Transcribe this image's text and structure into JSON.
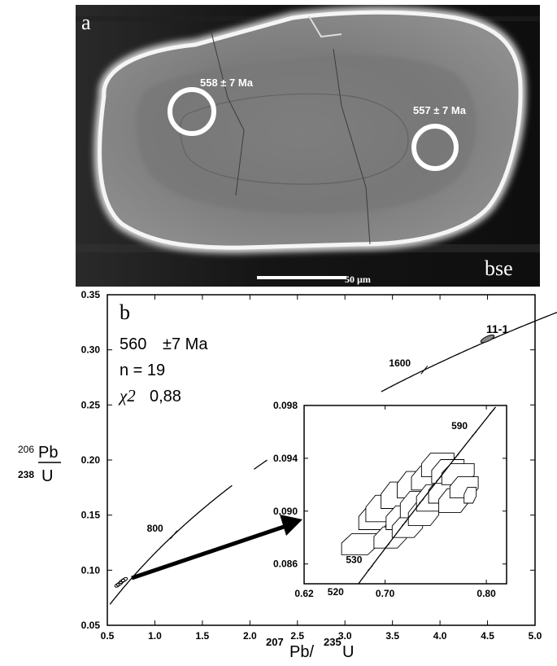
{
  "figure": {
    "panel_a": {
      "panel_label": "a",
      "mode_label": "bse",
      "scale_bar_label": "50 µm",
      "spots": [
        {
          "age_label": "558 ± 7 Ma"
        },
        {
          "age_label": "557 ± 7 Ma"
        }
      ]
    },
    "panel_b": {
      "panel_label": "b",
      "result_age": "560",
      "result_error": "±7 Ma",
      "result_n": "n = 19",
      "result_chi_symbol": "χ2",
      "result_chi_value": "0,88",
      "highlighted_analysis": "11-1",
      "xaxis_label_parts": {
        "sup1": "207",
        "t1": "Pb/",
        "sup2": "235",
        "t2": " U"
      },
      "yaxis_label_parts": {
        "sup_top": "206",
        "top": "Pb",
        "sup_bot": "238",
        "bot": "U"
      }
    }
  },
  "chart_data": {
    "type": "scatter",
    "subtype": "concordia diagram",
    "xlim": [
      0.5,
      5.0
    ],
    "ylim": [
      0.05,
      0.35
    ],
    "xticks": [
      "0.5",
      "1.0",
      "1.5",
      "2.0",
      "2.5",
      "3.0",
      "3.5",
      "4.0",
      "4.5",
      "5.0"
    ],
    "yticks": [
      "0.05",
      "0.10",
      "0.15",
      "0.20",
      "0.25",
      "0.30",
      "0.35"
    ],
    "concordia_age_labels": [
      {
        "label": "800",
        "x": 1.19,
        "y": 0.132
      },
      {
        "label": "1600",
        "x": 3.84,
        "y": 0.282
      }
    ],
    "outlier_ellipse": {
      "x": 4.5,
      "y": 0.31
    },
    "inset": {
      "xlim": [
        0.62,
        0.82
      ],
      "ylim": [
        0.0845,
        0.098
      ],
      "xticks": [
        "0.62",
        "0.70",
        "0.80"
      ],
      "yticks": [
        "0.086",
        "0.090",
        "0.094",
        "0.098"
      ],
      "age_labels": [
        "520",
        "530",
        "590"
      ],
      "error_boxes": [
        {
          "x": 0.675,
          "y": 0.0875,
          "dx": 0.018,
          "dy": 0.0008
        },
        {
          "x": 0.69,
          "y": 0.0895,
          "dx": 0.016,
          "dy": 0.0009
        },
        {
          "x": 0.698,
          "y": 0.0902,
          "dx": 0.017,
          "dy": 0.001
        },
        {
          "x": 0.705,
          "y": 0.088,
          "dx": 0.016,
          "dy": 0.0008
        },
        {
          "x": 0.712,
          "y": 0.0912,
          "dx": 0.016,
          "dy": 0.001
        },
        {
          "x": 0.718,
          "y": 0.0895,
          "dx": 0.017,
          "dy": 0.0009
        },
        {
          "x": 0.722,
          "y": 0.0888,
          "dx": 0.015,
          "dy": 0.0008
        },
        {
          "x": 0.728,
          "y": 0.092,
          "dx": 0.016,
          "dy": 0.001
        },
        {
          "x": 0.732,
          "y": 0.0905,
          "dx": 0.017,
          "dy": 0.001
        },
        {
          "x": 0.738,
          "y": 0.0898,
          "dx": 0.015,
          "dy": 0.0009
        },
        {
          "x": 0.742,
          "y": 0.0925,
          "dx": 0.016,
          "dy": 0.0009
        },
        {
          "x": 0.748,
          "y": 0.091,
          "dx": 0.017,
          "dy": 0.001
        },
        {
          "x": 0.752,
          "y": 0.0935,
          "dx": 0.016,
          "dy": 0.0009
        },
        {
          "x": 0.758,
          "y": 0.0915,
          "dx": 0.015,
          "dy": 0.0009
        },
        {
          "x": 0.762,
          "y": 0.093,
          "dx": 0.016,
          "dy": 0.0009
        },
        {
          "x": 0.768,
          "y": 0.0908,
          "dx": 0.015,
          "dy": 0.0009
        },
        {
          "x": 0.772,
          "y": 0.0928,
          "dx": 0.016,
          "dy": 0.0008
        },
        {
          "x": 0.778,
          "y": 0.0918,
          "dx": 0.014,
          "dy": 0.0008
        },
        {
          "x": 0.784,
          "y": 0.0912,
          "dx": 0.006,
          "dy": 0.0006
        }
      ]
    }
  }
}
